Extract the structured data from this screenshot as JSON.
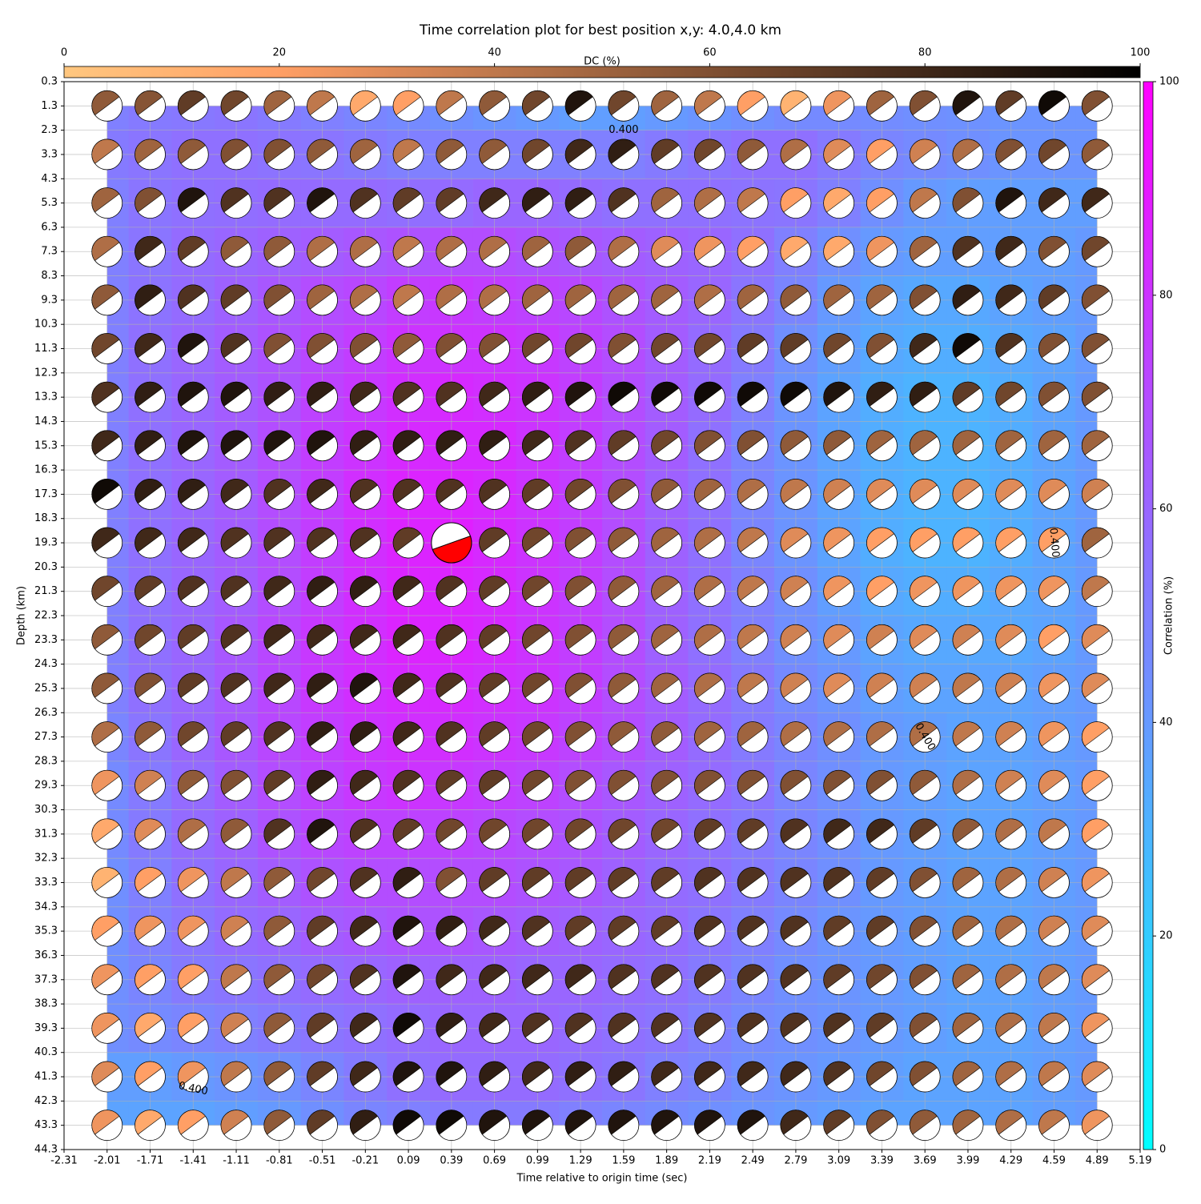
{
  "chart_data": {
    "type": "beachball-grid",
    "title": "Time correlation plot for best position x,y: 4.0,4.0 km",
    "xlabel": "Time relative to origin time (sec)",
    "ylabel": "Depth (km)",
    "x": [
      -2.01,
      -1.71,
      -1.41,
      -1.11,
      -0.81,
      -0.51,
      -0.21,
      0.09,
      0.39,
      0.69,
      0.99,
      1.29,
      1.59,
      1.89,
      2.19,
      2.49,
      2.79,
      3.09,
      3.39,
      3.69,
      3.99,
      4.29,
      4.59,
      4.89
    ],
    "depths": [
      1.3,
      3.3,
      5.3,
      7.3,
      9.3,
      11.3,
      13.3,
      15.3,
      17.3,
      19.3,
      21.3,
      23.3,
      25.3,
      27.3,
      29.3,
      31.3,
      33.3,
      35.3,
      37.3,
      39.3,
      41.3,
      43.3
    ],
    "correlation": [
      [
        50,
        52,
        53,
        54,
        52,
        50,
        48,
        46,
        44,
        42,
        40,
        38,
        38,
        40,
        42,
        44,
        46,
        46,
        45,
        44,
        43,
        42,
        42,
        42
      ],
      [
        52,
        54,
        56,
        56,
        55,
        54,
        52,
        50,
        50,
        50,
        50,
        50,
        50,
        52,
        54,
        56,
        56,
        52,
        48,
        46,
        44,
        42,
        42,
        42
      ],
      [
        50,
        54,
        56,
        57,
        58,
        58,
        58,
        57,
        58,
        60,
        60,
        58,
        56,
        56,
        56,
        55,
        54,
        50,
        44,
        40,
        38,
        38,
        38,
        38
      ],
      [
        50,
        54,
        58,
        60,
        62,
        64,
        66,
        68,
        70,
        70,
        68,
        66,
        64,
        62,
        60,
        56,
        50,
        44,
        40,
        38,
        38,
        38,
        38,
        40
      ],
      [
        50,
        55,
        58,
        62,
        66,
        70,
        72,
        76,
        78,
        76,
        74,
        72,
        68,
        64,
        60,
        54,
        48,
        40,
        36,
        34,
        34,
        36,
        38,
        40
      ],
      [
        50,
        56,
        60,
        64,
        68,
        72,
        76,
        80,
        80,
        80,
        78,
        74,
        70,
        64,
        58,
        52,
        44,
        38,
        34,
        32,
        32,
        34,
        36,
        40
      ],
      [
        50,
        56,
        60,
        64,
        68,
        74,
        78,
        82,
        84,
        82,
        80,
        76,
        70,
        64,
        58,
        50,
        42,
        36,
        32,
        30,
        30,
        32,
        36,
        40
      ],
      [
        50,
        56,
        60,
        64,
        70,
        76,
        80,
        84,
        84,
        84,
        80,
        76,
        70,
        64,
        56,
        48,
        42,
        36,
        32,
        30,
        30,
        32,
        36,
        40
      ],
      [
        50,
        56,
        60,
        64,
        70,
        76,
        82,
        86,
        86,
        84,
        80,
        76,
        70,
        62,
        56,
        48,
        42,
        36,
        32,
        30,
        30,
        32,
        36,
        40
      ],
      [
        50,
        56,
        60,
        64,
        70,
        76,
        82,
        86,
        88,
        84,
        80,
        76,
        70,
        62,
        56,
        48,
        42,
        36,
        32,
        30,
        30,
        32,
        36,
        40
      ],
      [
        50,
        56,
        60,
        64,
        70,
        76,
        82,
        86,
        86,
        84,
        80,
        76,
        70,
        62,
        56,
        50,
        44,
        38,
        34,
        32,
        32,
        34,
        36,
        40
      ],
      [
        50,
        56,
        60,
        66,
        72,
        78,
        82,
        86,
        86,
        84,
        80,
        76,
        70,
        62,
        56,
        50,
        44,
        40,
        36,
        34,
        34,
        34,
        36,
        40
      ],
      [
        50,
        56,
        60,
        66,
        72,
        78,
        82,
        84,
        84,
        82,
        80,
        76,
        70,
        64,
        58,
        52,
        46,
        42,
        38,
        36,
        36,
        36,
        38,
        40
      ],
      [
        48,
        54,
        60,
        66,
        72,
        76,
        80,
        82,
        82,
        80,
        78,
        74,
        70,
        64,
        58,
        52,
        48,
        44,
        40,
        38,
        36,
        36,
        38,
        40
      ],
      [
        46,
        52,
        58,
        64,
        70,
        74,
        78,
        80,
        78,
        76,
        74,
        70,
        66,
        62,
        58,
        54,
        48,
        44,
        40,
        38,
        36,
        36,
        38,
        40
      ],
      [
        46,
        52,
        58,
        62,
        68,
        72,
        74,
        74,
        74,
        72,
        70,
        68,
        64,
        60,
        56,
        52,
        48,
        44,
        40,
        38,
        36,
        36,
        38,
        40
      ],
      [
        44,
        50,
        56,
        60,
        64,
        68,
        70,
        70,
        70,
        70,
        68,
        66,
        62,
        58,
        56,
        52,
        48,
        44,
        40,
        38,
        36,
        36,
        38,
        40
      ],
      [
        44,
        50,
        54,
        58,
        60,
        64,
        66,
        68,
        68,
        66,
        64,
        62,
        60,
        58,
        54,
        50,
        46,
        42,
        40,
        38,
        36,
        36,
        38,
        40
      ],
      [
        44,
        48,
        52,
        54,
        56,
        58,
        60,
        62,
        62,
        62,
        60,
        60,
        58,
        56,
        52,
        48,
        44,
        42,
        40,
        38,
        36,
        36,
        38,
        40
      ],
      [
        44,
        46,
        48,
        50,
        52,
        54,
        56,
        58,
        60,
        60,
        60,
        58,
        56,
        54,
        50,
        46,
        44,
        42,
        40,
        38,
        36,
        36,
        38,
        40
      ],
      [
        38,
        38,
        40,
        42,
        44,
        48,
        52,
        56,
        58,
        58,
        58,
        56,
        54,
        50,
        48,
        44,
        42,
        40,
        38,
        36,
        36,
        36,
        38,
        40
      ],
      [
        36,
        36,
        36,
        38,
        40,
        44,
        48,
        50,
        52,
        52,
        52,
        50,
        48,
        46,
        44,
        42,
        40,
        38,
        36,
        36,
        36,
        36,
        38,
        40
      ]
    ],
    "dc": [
      [
        55,
        58,
        70,
        65,
        50,
        40,
        15,
        20,
        40,
        55,
        65,
        90,
        65,
        50,
        40,
        20,
        10,
        25,
        50,
        60,
        90,
        70,
        95,
        60
      ],
      [
        40,
        50,
        55,
        60,
        60,
        55,
        50,
        40,
        55,
        55,
        65,
        80,
        85,
        70,
        65,
        55,
        45,
        30,
        20,
        35,
        45,
        60,
        65,
        55
      ],
      [
        50,
        60,
        90,
        75,
        75,
        90,
        75,
        70,
        70,
        80,
        85,
        85,
        75,
        50,
        45,
        40,
        20,
        15,
        20,
        40,
        60,
        90,
        80,
        80
      ],
      [
        45,
        80,
        70,
        55,
        55,
        45,
        45,
        40,
        45,
        45,
        50,
        55,
        45,
        30,
        25,
        20,
        15,
        15,
        25,
        50,
        75,
        80,
        60,
        65
      ],
      [
        55,
        85,
        75,
        70,
        60,
        50,
        45,
        40,
        45,
        45,
        50,
        50,
        50,
        50,
        45,
        50,
        55,
        50,
        50,
        60,
        85,
        80,
        70,
        60
      ],
      [
        65,
        80,
        90,
        75,
        60,
        60,
        60,
        55,
        60,
        60,
        65,
        65,
        60,
        65,
        65,
        70,
        70,
        65,
        60,
        80,
        95,
        75,
        60,
        60
      ],
      [
        75,
        85,
        90,
        90,
        85,
        85,
        80,
        75,
        75,
        80,
        85,
        90,
        95,
        95,
        95,
        95,
        95,
        90,
        85,
        85,
        70,
        65,
        60,
        60
      ],
      [
        80,
        85,
        90,
        90,
        90,
        90,
        85,
        85,
        85,
        85,
        80,
        75,
        70,
        65,
        60,
        60,
        55,
        55,
        50,
        50,
        50,
        50,
        50,
        50
      ],
      [
        95,
        85,
        85,
        80,
        75,
        80,
        75,
        75,
        75,
        75,
        70,
        65,
        60,
        55,
        50,
        45,
        40,
        35,
        30,
        30,
        30,
        30,
        30,
        35
      ],
      [
        80,
        80,
        80,
        75,
        75,
        75,
        75,
        70,
        75,
        70,
        65,
        60,
        55,
        50,
        45,
        40,
        30,
        25,
        20,
        20,
        20,
        20,
        20,
        50
      ],
      [
        65,
        70,
        75,
        75,
        80,
        85,
        85,
        80,
        75,
        70,
        65,
        60,
        55,
        50,
        45,
        40,
        35,
        25,
        20,
        25,
        25,
        25,
        25,
        40
      ],
      [
        55,
        65,
        70,
        75,
        80,
        80,
        80,
        80,
        75,
        70,
        65,
        60,
        55,
        50,
        45,
        40,
        35,
        30,
        35,
        30,
        35,
        30,
        20,
        30
      ],
      [
        55,
        60,
        70,
        75,
        80,
        85,
        90,
        80,
        75,
        70,
        65,
        60,
        55,
        50,
        45,
        40,
        35,
        30,
        35,
        35,
        40,
        35,
        25,
        30
      ],
      [
        45,
        55,
        65,
        70,
        75,
        85,
        85,
        80,
        75,
        70,
        65,
        60,
        55,
        55,
        50,
        50,
        45,
        45,
        45,
        45,
        40,
        35,
        25,
        20
      ],
      [
        25,
        35,
        55,
        60,
        70,
        85,
        80,
        75,
        70,
        70,
        65,
        60,
        60,
        60,
        60,
        60,
        60,
        60,
        60,
        55,
        45,
        35,
        30,
        20
      ],
      [
        15,
        30,
        45,
        55,
        75,
        90,
        75,
        70,
        65,
        65,
        65,
        65,
        65,
        65,
        70,
        70,
        75,
        80,
        80,
        70,
        55,
        45,
        40,
        20
      ],
      [
        10,
        20,
        25,
        40,
        55,
        65,
        75,
        85,
        60,
        70,
        70,
        70,
        70,
        70,
        75,
        75,
        75,
        75,
        70,
        60,
        50,
        45,
        35,
        25
      ],
      [
        20,
        25,
        25,
        35,
        55,
        70,
        80,
        90,
        85,
        80,
        75,
        70,
        70,
        70,
        75,
        75,
        75,
        70,
        70,
        60,
        50,
        45,
        35,
        30
      ],
      [
        25,
        20,
        20,
        40,
        55,
        65,
        75,
        90,
        80,
        80,
        80,
        80,
        75,
        75,
        75,
        75,
        75,
        70,
        65,
        60,
        50,
        45,
        40,
        30
      ],
      [
        25,
        15,
        20,
        35,
        55,
        70,
        80,
        95,
        85,
        80,
        75,
        75,
        75,
        75,
        75,
        75,
        75,
        75,
        70,
        60,
        50,
        45,
        40,
        25
      ],
      [
        30,
        20,
        25,
        40,
        55,
        70,
        80,
        90,
        90,
        85,
        80,
        85,
        85,
        80,
        80,
        80,
        80,
        75,
        65,
        60,
        50,
        45,
        40,
        30
      ],
      [
        25,
        15,
        20,
        35,
        55,
        70,
        85,
        95,
        95,
        90,
        90,
        90,
        90,
        90,
        90,
        90,
        80,
        70,
        60,
        55,
        50,
        45,
        40,
        25
      ]
    ],
    "best": {
      "x": 0.39,
      "depth": 19.3,
      "color": "#ff0000"
    },
    "xlim": [
      -2.31,
      5.19
    ],
    "xticks": [
      -2.31,
      -2.01,
      -1.71,
      -1.41,
      -1.11,
      -0.81,
      -0.51,
      -0.21,
      0.09,
      0.39,
      0.69,
      0.99,
      1.29,
      1.59,
      1.89,
      2.19,
      2.49,
      2.79,
      3.09,
      3.39,
      3.69,
      3.99,
      4.29,
      4.59,
      4.89,
      5.19
    ],
    "ylim": [
      0.3,
      44.3
    ],
    "y_inverted": true,
    "yticks": [
      0.3,
      1.3,
      2.3,
      3.3,
      4.3,
      5.3,
      6.3,
      7.3,
      8.3,
      9.3,
      10.3,
      11.3,
      12.3,
      13.3,
      14.3,
      15.3,
      16.3,
      17.3,
      18.3,
      19.3,
      20.3,
      21.3,
      22.3,
      23.3,
      24.3,
      25.3,
      26.3,
      27.3,
      28.3,
      29.3,
      30.3,
      31.3,
      32.3,
      33.3,
      34.3,
      35.3,
      36.3,
      37.3,
      38.3,
      39.3,
      40.3,
      41.3,
      42.3,
      43.3,
      44.3
    ],
    "grid": true,
    "contour_labels": [
      "0.400",
      "0.400",
      "0.400",
      "0.400"
    ],
    "dc_colorbar": {
      "label": "DC (%)",
      "lim": [
        0,
        100
      ],
      "ticks": [
        0,
        20,
        40,
        60,
        80,
        100
      ],
      "colormap": "copper_r"
    },
    "corr_colorbar": {
      "label": "Correlation (%)",
      "lim": [
        0,
        100
      ],
      "ticks": [
        0,
        20,
        40,
        60,
        80,
        100
      ],
      "colormap": "cool"
    }
  }
}
